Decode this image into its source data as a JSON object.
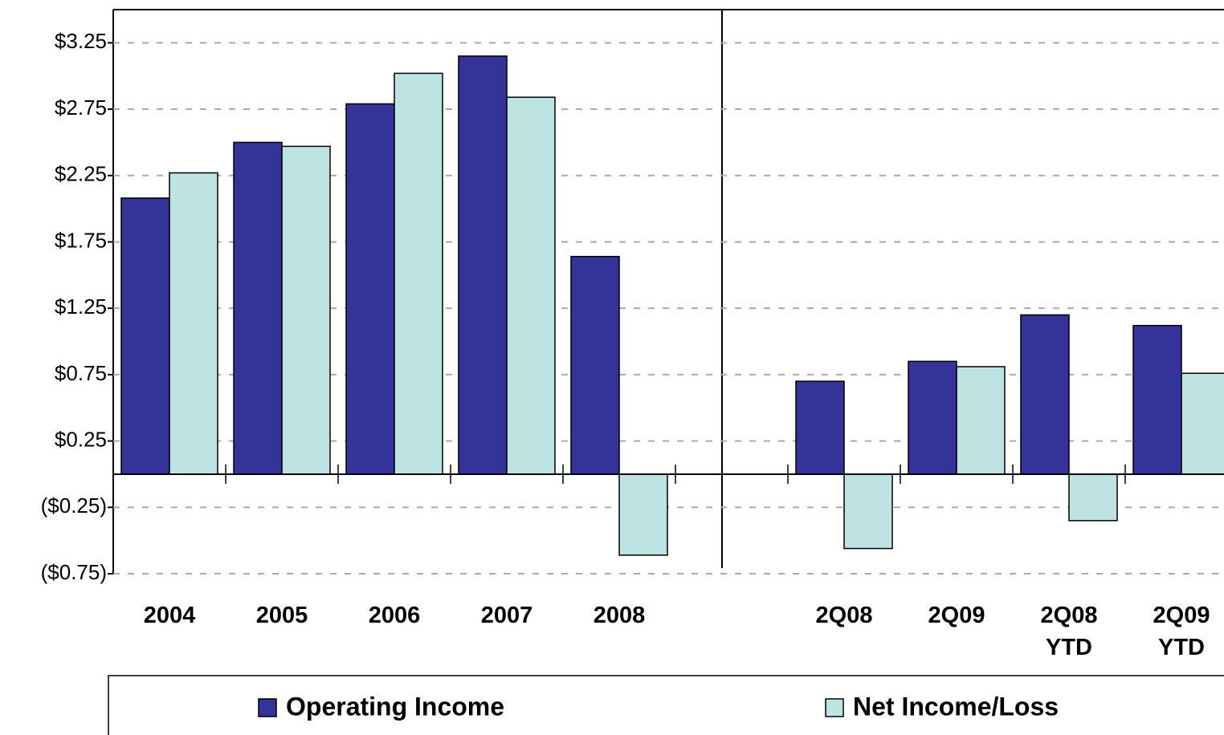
{
  "chart_data": {
    "type": "bar",
    "categories": [
      "2004",
      "2005",
      "2006",
      "2007",
      "2008",
      null,
      "2Q08",
      "2Q09",
      "2Q08 YTD",
      "2Q09 YTD"
    ],
    "series": [
      {
        "name": "Operating Income",
        "color": "#333399",
        "values": [
          2.08,
          2.5,
          2.79,
          3.15,
          1.64,
          null,
          0.7,
          0.85,
          1.2,
          1.12
        ]
      },
      {
        "name": "Net Income/Loss",
        "color": "#bde3e3",
        "values": [
          2.27,
          2.47,
          3.02,
          2.84,
          -0.61,
          null,
          -0.56,
          0.81,
          -0.35,
          0.76
        ]
      }
    ],
    "ylim": [
      -0.75,
      3.5
    ],
    "yticks": [
      {
        "value": 3.25,
        "label": "$3.25"
      },
      {
        "value": 2.75,
        "label": "$2.75"
      },
      {
        "value": 2.25,
        "label": "$2.25"
      },
      {
        "value": 1.75,
        "label": "$1.75"
      },
      {
        "value": 1.25,
        "label": "$1.25"
      },
      {
        "value": 0.75,
        "label": "$0.75"
      },
      {
        "value": 0.25,
        "label": "$0.25"
      },
      {
        "value": -0.25,
        "label": "($0.25)"
      },
      {
        "value": -0.75,
        "label": "($0.75)"
      }
    ],
    "grid": true
  }
}
